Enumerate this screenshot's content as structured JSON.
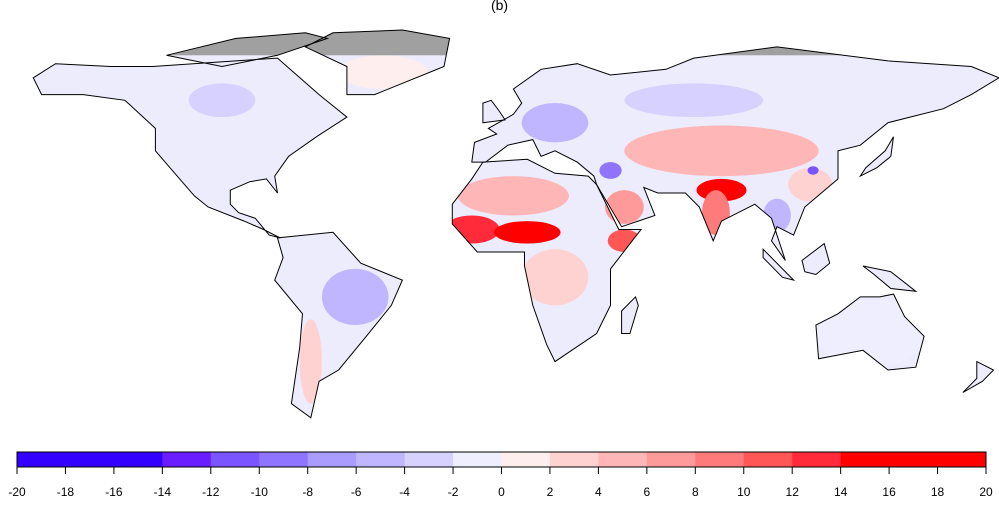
{
  "title": "(b)",
  "map": {
    "type": "choropleth-world",
    "missing_color": "#a0a0a0",
    "land_default_color": "#ececfd",
    "ocean_color": "#ffffff",
    "border_color": "#000000"
  },
  "colorbar": {
    "range": [
      -20,
      20
    ],
    "step": 2,
    "tick_labels": [
      "-20",
      "-18",
      "-16",
      "-14",
      "-12",
      "-10",
      "-8",
      "-6",
      "-4",
      "-2",
      "0",
      "2",
      "4",
      "6",
      "8",
      "10",
      "12",
      "14",
      "16",
      "18",
      "20"
    ],
    "bin_colors": [
      "#3300ff",
      "#3300ff",
      "#3300ff",
      "#6a1eff",
      "#7a55ff",
      "#8f74ff",
      "#a99bff",
      "#c0b6ff",
      "#d6d1ff",
      "#eeeeff",
      "#ffeeee",
      "#ffd2d2",
      "#ffb6b6",
      "#ff9a9a",
      "#ff7a7a",
      "#ff5656",
      "#ff2a3a",
      "#ff0000",
      "#ff0000",
      "#ff0000"
    ]
  }
}
